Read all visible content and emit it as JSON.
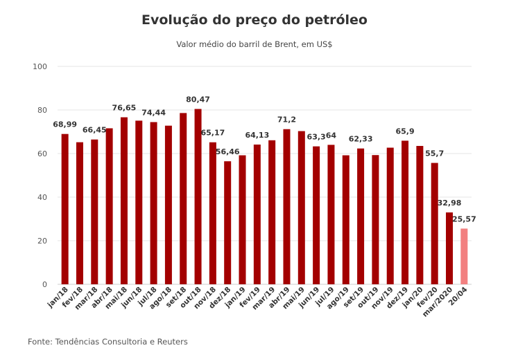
{
  "chart_data": {
    "type": "bar",
    "title": "Evolução do preço do petróleo",
    "subtitle": "Valor médio do barril de Brent, em US$",
    "source": "Fonte: Tendências Consultoria e Reuters",
    "ylim": [
      0,
      100
    ],
    "yticks": [
      0,
      20,
      40,
      60,
      80,
      100
    ],
    "grid": true,
    "colors": {
      "bar": "#a30000",
      "highlight": "#f28080"
    },
    "categories": [
      "jan/18",
      "fev/18",
      "mar/18",
      "abr/18",
      "mai/18",
      "jun/18",
      "jul/18",
      "ago/18",
      "set/18",
      "out/18",
      "nov/18",
      "dez/18",
      "jan/19",
      "fev/19",
      "mar/19",
      "abr/19",
      "mai/19",
      "jun/19",
      "jul/19",
      "ago/19",
      "set/19",
      "out/19",
      "nov/19",
      "dez/19",
      "jan/20",
      "fev/20",
      "mar/2020",
      "20/04"
    ],
    "values": [
      68.99,
      65.2,
      66.45,
      71.6,
      76.65,
      75.1,
      74.44,
      72.8,
      78.6,
      80.47,
      65.17,
      56.46,
      59.2,
      64.13,
      66.1,
      71.2,
      70.3,
      63.3,
      64,
      59.2,
      62.33,
      59.3,
      62.7,
      65.9,
      63.5,
      55.7,
      32.98,
      25.57
    ],
    "labels": [
      "68,99",
      "",
      "66,45",
      "",
      "76,65",
      "",
      "74,44",
      "",
      "",
      "80,47",
      "65,17",
      "56,46",
      "",
      "64,13",
      "",
      "71,2",
      "",
      "63,3",
      "64",
      "",
      "62,33",
      "",
      "",
      "65,9",
      "",
      "55,7",
      "32,98",
      "25,57"
    ],
    "highlight_index": 27
  }
}
